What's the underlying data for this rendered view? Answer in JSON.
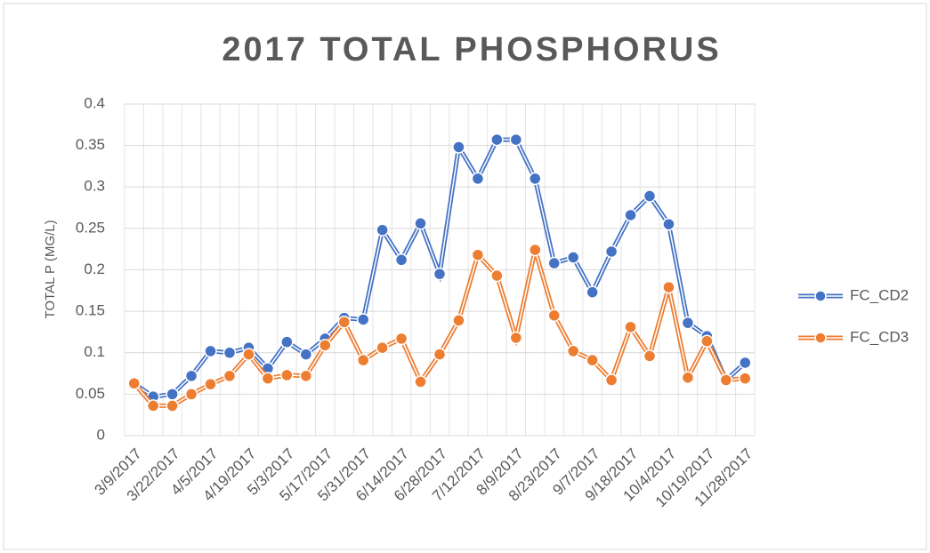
{
  "chart_data": {
    "type": "line",
    "title": "2017 TOTAL PHOSPHORUS",
    "y_label": "TOTAL P (MG/L)",
    "categories": [
      "3/9/2017",
      null,
      "3/22/2017",
      null,
      "4/5/2017",
      null,
      "4/19/2017",
      null,
      "5/3/2017",
      null,
      "5/17/2017",
      null,
      "5/31/2017",
      null,
      "6/14/2017",
      null,
      "6/28/2017",
      null,
      "7/12/2017",
      null,
      "8/9/2017",
      null,
      "8/23/2017",
      null,
      "9/7/2017",
      null,
      "9/18/2017",
      null,
      "10/4/2017",
      null,
      "10/19/2017",
      null,
      "11/28/2017"
    ],
    "series": [
      {
        "name": "FC_CD2",
        "color": "#4472c4",
        "values": [
          0.063,
          0.047,
          0.05,
          0.072,
          0.102,
          0.1,
          0.106,
          0.081,
          0.113,
          0.098,
          0.117,
          0.142,
          0.14,
          0.248,
          0.212,
          0.256,
          0.195,
          0.348,
          0.31,
          0.357,
          0.357,
          0.31,
          0.208,
          0.215,
          0.173,
          0.222,
          0.266,
          0.289,
          0.255,
          0.136,
          0.12,
          0.067,
          0.088
        ]
      },
      {
        "name": "FC_CD3",
        "color": "#ed7d31",
        "values": [
          0.063,
          0.036,
          0.036,
          0.05,
          0.062,
          0.072,
          0.098,
          0.069,
          0.073,
          0.072,
          0.109,
          0.137,
          0.091,
          0.106,
          0.117,
          0.065,
          0.098,
          0.139,
          0.218,
          0.193,
          0.118,
          0.224,
          0.145,
          0.102,
          0.091,
          0.067,
          0.131,
          0.096,
          0.179,
          0.07,
          0.114,
          0.067,
          0.069
        ]
      }
    ],
    "ylim": [
      0,
      0.4
    ],
    "yticks": [
      0,
      0.05,
      0.1,
      0.15,
      0.2,
      0.25,
      0.3,
      0.35,
      0.4
    ],
    "grid": true,
    "legend": "right"
  }
}
